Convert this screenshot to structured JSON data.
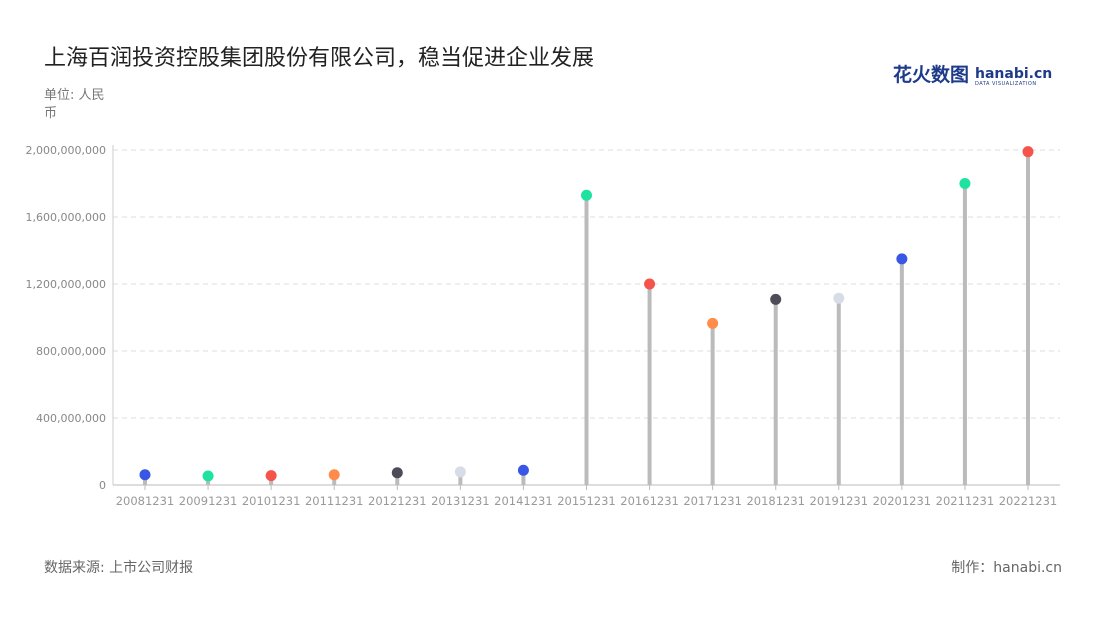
{
  "title": "上海百润投资控股集团股份有限公司，稳当促进企业发展",
  "unit": "单位: 人民币",
  "source": "数据来源: 上市公司财报",
  "credit": "制作：hanabi.cn",
  "logo": {
    "cn": "花火数图",
    "en": "hanabi.cn",
    "tagline": "DATA VISUALIZATION"
  },
  "chart_data": {
    "type": "lollipop",
    "categories": [
      "20081231",
      "20091231",
      "20101231",
      "20111231",
      "20121231",
      "20131231",
      "20141231",
      "20151231",
      "20161231",
      "20171231",
      "20181231",
      "20191231",
      "20201231",
      "20211231",
      "20221231"
    ],
    "values": [
      61000000,
      54000000,
      56000000,
      61000000,
      73000000,
      78000000,
      88000000,
      1730000000,
      1200000000,
      965000000,
      1108000000,
      1115000000,
      1350000000,
      1800000000,
      1990000000
    ],
    "ylim": [
      0,
      2000000000
    ],
    "yticks": [
      "0",
      "400,000,000",
      "800,000,000",
      "1,200,000,000",
      "1,600,000,000",
      "2,000,000,000"
    ],
    "grid": true,
    "colors": [
      "#3a56e4",
      "#1ee3a0",
      "#f5544a",
      "#ff8c4a",
      "#4e4c58",
      "#d8dce6"
    ],
    "stem_color": "#bbbbbb"
  }
}
